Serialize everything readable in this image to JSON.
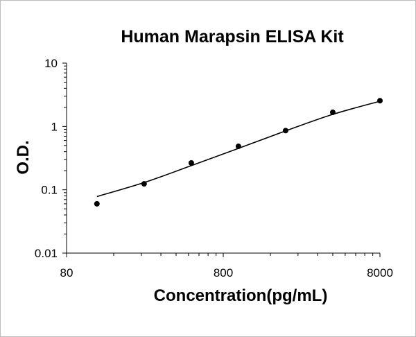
{
  "chart_data": {
    "type": "scatter",
    "title": "Human Marapsin ELISA Kit",
    "xlabel": "Concentration(pg/mL)",
    "ylabel": "O.D.",
    "x_scale": "log",
    "y_scale": "log",
    "xlim": [
      80,
      8000
    ],
    "ylim": [
      0.01,
      10
    ],
    "x_ticks": [
      80,
      800,
      8000
    ],
    "x_tick_labels": [
      "80",
      "800",
      "8000"
    ],
    "y_ticks": [
      0.01,
      0.1,
      1,
      10
    ],
    "y_tick_labels": [
      "0.01",
      "0.1",
      "1",
      "10"
    ],
    "grid": false,
    "series": [
      {
        "values": [
          {
            "x": 125,
            "y": 0.06
          },
          {
            "x": 250,
            "y": 0.124
          },
          {
            "x": 500,
            "y": 0.265
          },
          {
            "x": 1000,
            "y": 0.485
          },
          {
            "x": 2000,
            "y": 0.86
          },
          {
            "x": 4000,
            "y": 1.67
          },
          {
            "x": 8000,
            "y": 2.55
          }
        ],
        "marker": "circle",
        "color": "#000000"
      }
    ],
    "fit_curve": {
      "type": "line",
      "color": "#000000",
      "points": [
        {
          "x": 125,
          "y": 0.078
        },
        {
          "x": 250,
          "y": 0.13
        },
        {
          "x": 500,
          "y": 0.24
        },
        {
          "x": 1000,
          "y": 0.45
        },
        {
          "x": 2000,
          "y": 0.85
        },
        {
          "x": 4000,
          "y": 1.55
        },
        {
          "x": 8000,
          "y": 2.5
        }
      ]
    }
  }
}
